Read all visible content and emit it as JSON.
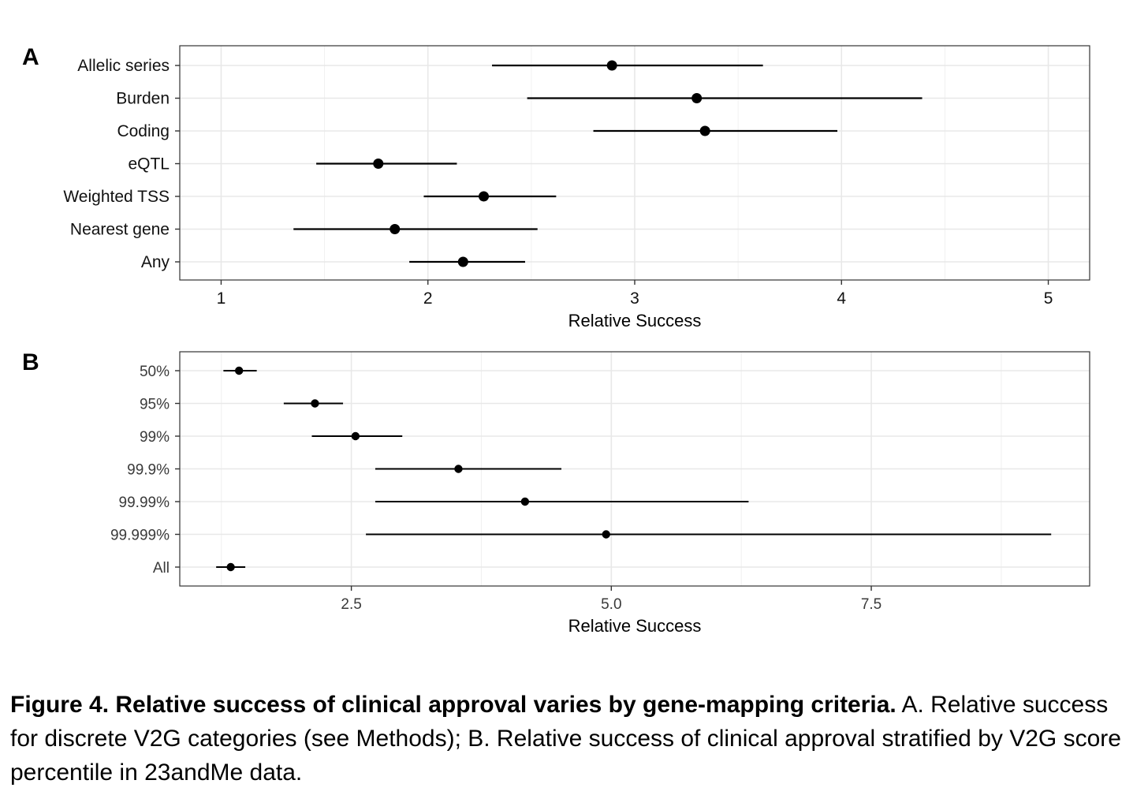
{
  "figure": {
    "panels": [
      "A",
      "B"
    ]
  },
  "chart_data": [
    {
      "panel": "A",
      "type": "scatter",
      "subtype": "point-range",
      "orientation": "horizontal",
      "categories": [
        "Allelic series",
        "Burden",
        "Coding",
        "eQTL",
        "Weighted TSS",
        "Nearest gene",
        "Any"
      ],
      "estimates": [
        2.89,
        3.3,
        3.34,
        1.76,
        2.27,
        1.84,
        2.17
      ],
      "lower": [
        2.31,
        2.48,
        2.8,
        1.46,
        1.98,
        1.35,
        1.91
      ],
      "upper": [
        3.62,
        4.39,
        3.98,
        2.14,
        2.62,
        2.53,
        2.47
      ],
      "xlabel": "Relative Success",
      "ylabel": "",
      "xlim": [
        0.8,
        5.2
      ],
      "xticks": [
        1,
        2,
        3,
        4,
        5
      ],
      "xtick_labels": [
        "1",
        "2",
        "3",
        "4",
        "5"
      ],
      "grid": true
    },
    {
      "panel": "B",
      "type": "scatter",
      "subtype": "point-range",
      "orientation": "horizontal",
      "categories": [
        "50%",
        "95%",
        "99%",
        "99.9%",
        "99.99%",
        "99.999%",
        "All"
      ],
      "estimates": [
        1.42,
        2.15,
        2.54,
        3.53,
        4.17,
        4.95,
        1.34
      ],
      "lower": [
        1.27,
        1.85,
        2.12,
        2.73,
        2.73,
        2.64,
        1.2
      ],
      "upper": [
        1.59,
        2.42,
        2.99,
        4.52,
        6.32,
        9.23,
        1.48
      ],
      "xlabel": "Relative Success",
      "ylabel": "",
      "xlim": [
        0.85,
        9.6
      ],
      "xticks": [
        2.5,
        5.0,
        7.5
      ],
      "xtick_labels": [
        "2.5",
        "5.0",
        "7.5"
      ],
      "grid": true
    }
  ],
  "caption": {
    "bold": "Figure 4. Relative success of clinical approval varies by gene-mapping criteria.",
    "text": " A. Relative success for discrete V2G categories (see Methods); B. Relative success of clinical approval stratified by V2G score percentile in 23andMe data."
  },
  "colors": {
    "point": "#000000",
    "grid": "#e8e8e8",
    "border": "#333333"
  }
}
